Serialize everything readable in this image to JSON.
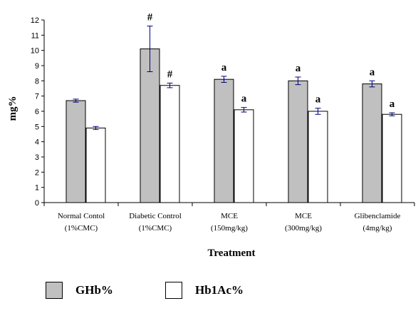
{
  "chart_data": {
    "type": "bar",
    "title": "",
    "xlabel": "Treatment",
    "ylabel": "mg%",
    "ylim": [
      0,
      12
    ],
    "yticks": [
      0,
      1,
      2,
      3,
      4,
      5,
      6,
      7,
      8,
      9,
      10,
      11,
      12
    ],
    "grid": false,
    "legend": "bottom",
    "categories": [
      [
        "Normal Contol",
        "(1%CMC)"
      ],
      [
        "Diabetic Control",
        "(1%CMC)"
      ],
      [
        "MCE",
        "(150mg/kg)"
      ],
      [
        "MCE",
        "(300mg/kg)"
      ],
      [
        "Glibenclamide",
        "(4mg/kg)"
      ]
    ],
    "series": [
      {
        "name": "GHb%",
        "color": "#c0c0c0",
        "values": [
          6.7,
          10.1,
          8.1,
          8.0,
          7.8
        ],
        "errors": [
          0.1,
          1.5,
          0.2,
          0.25,
          0.2
        ],
        "annotations": [
          "",
          "#",
          "a",
          "a",
          "a"
        ]
      },
      {
        "name": "Hb1Ac%",
        "color": "#ffffff",
        "values": [
          4.9,
          7.7,
          6.1,
          6.0,
          5.8
        ],
        "errors": [
          0.1,
          0.15,
          0.15,
          0.2,
          0.1
        ],
        "annotations": [
          "",
          "#",
          "a",
          "a",
          "a"
        ]
      }
    ]
  }
}
